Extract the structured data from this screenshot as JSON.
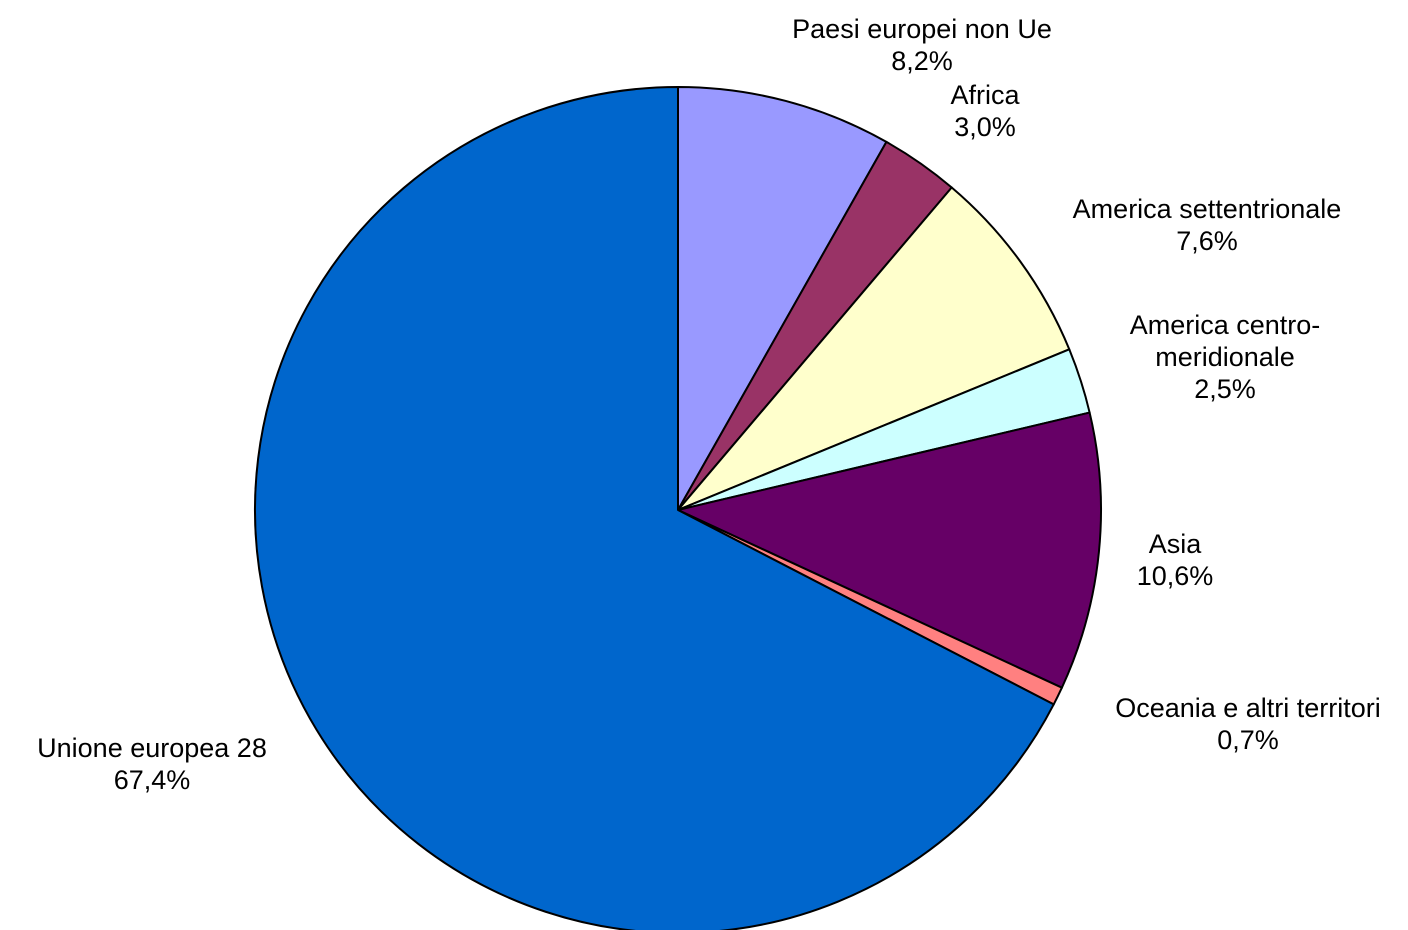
{
  "chart_data": {
    "type": "pie",
    "title": "",
    "start_angle_deg": 0,
    "direction": "clockwise",
    "slices": [
      {
        "name": "Paesi europei non Ue",
        "name_lines": [
          "Paesi europei non Ue"
        ],
        "value": 8.2,
        "value_label": "8,2%",
        "color": "#9999FF"
      },
      {
        "name": "Africa",
        "name_lines": [
          "Africa"
        ],
        "value": 3.0,
        "value_label": "3,0%",
        "color": "#993366"
      },
      {
        "name": "America settentrionale",
        "name_lines": [
          "America settentrionale"
        ],
        "value": 7.6,
        "value_label": "7,6%",
        "color": "#FFFFCC"
      },
      {
        "name": "America centro-meridionale",
        "name_lines": [
          "America centro-",
          "meridionale"
        ],
        "value": 2.5,
        "value_label": "2,5%",
        "color": "#CCFFFF"
      },
      {
        "name": "Asia",
        "name_lines": [
          "Asia"
        ],
        "value": 10.6,
        "value_label": "10,6%",
        "color": "#660066"
      },
      {
        "name": "Oceania e altri territori",
        "name_lines": [
          "Oceania e altri territori"
        ],
        "value": 0.7,
        "value_label": "0,7%",
        "color": "#FF8080"
      },
      {
        "name": "Unione europea 28",
        "name_lines": [
          "Unione europea 28"
        ],
        "value": 67.4,
        "value_label": "67,4%",
        "color": "#0066CC"
      }
    ]
  }
}
